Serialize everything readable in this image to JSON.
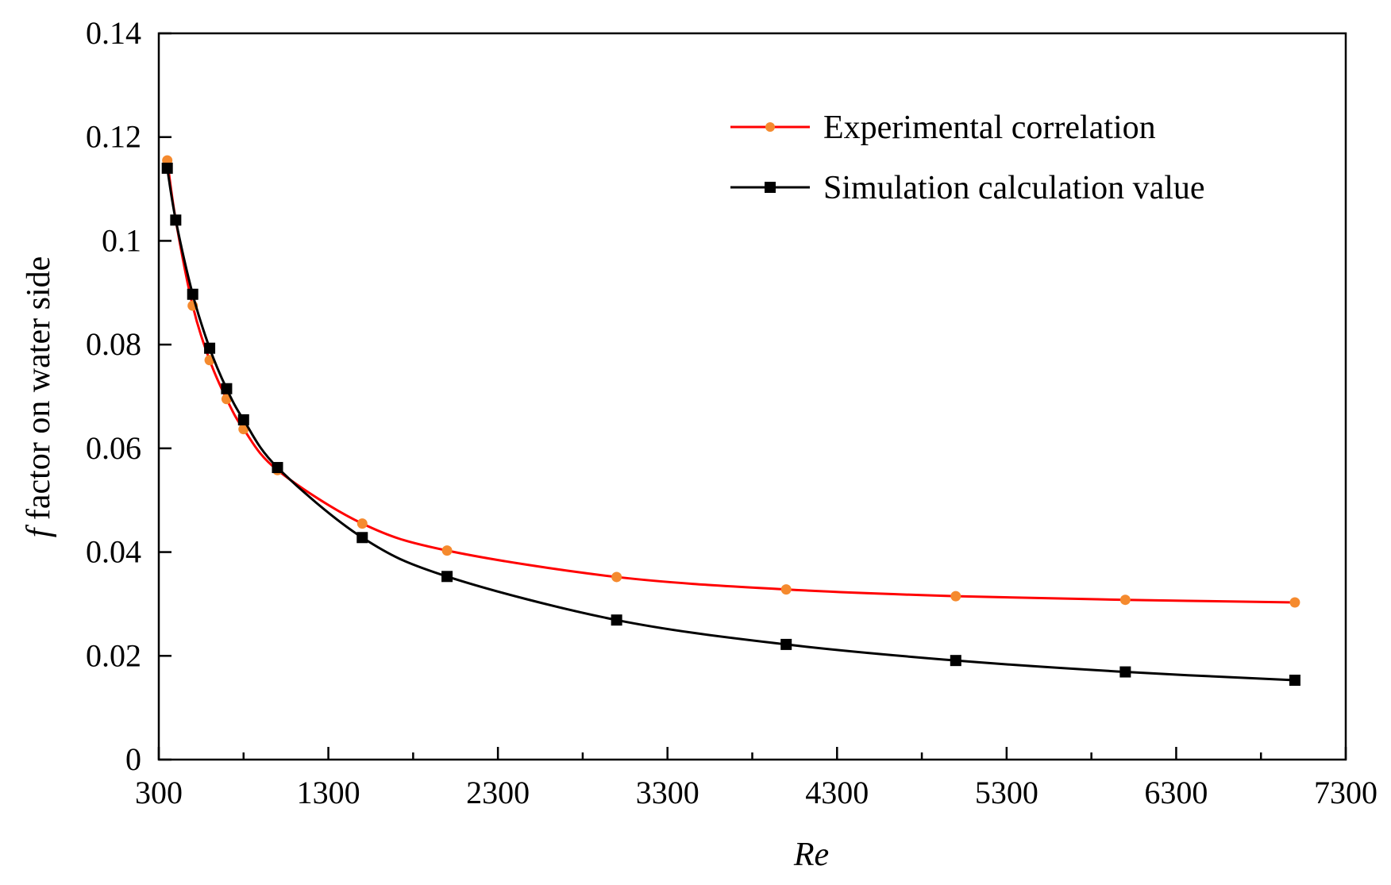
{
  "chart_data": {
    "type": "line",
    "title": "",
    "xlabel": "Re",
    "ylabel_prefix": "f",
    "ylabel": "factor on water side",
    "xlim": [
      300,
      7300
    ],
    "ylim": [
      0,
      0.14
    ],
    "xticks": [
      300,
      1300,
      2300,
      3300,
      4300,
      5300,
      6300,
      7300
    ],
    "xtick_labels": [
      "300",
      "1300",
      "2300",
      "3300",
      "4300",
      "5300",
      "6300",
      "7300"
    ],
    "xminor_step": 500,
    "yticks": [
      0,
      0.02,
      0.04,
      0.06,
      0.08,
      0.1,
      0.12,
      0.14
    ],
    "ytick_labels": [
      "0",
      "0.02",
      "0.04",
      "0.06",
      "0.08",
      "0.1",
      "0.12",
      "0.14"
    ],
    "grid": false,
    "legend_position": "top-right",
    "series": [
      {
        "name": "Experimental correlation",
        "color": "#ff0000",
        "marker_color": "#f58a2e",
        "marker": "circle",
        "x": [
          350,
          400,
          500,
          600,
          700,
          800,
          1000,
          1500,
          2000,
          3000,
          4000,
          5000,
          6000,
          7000
        ],
        "y": [
          0.1155,
          0.104,
          0.0875,
          0.077,
          0.0695,
          0.0637,
          0.0558,
          0.0455,
          0.0403,
          0.0352,
          0.0328,
          0.0315,
          0.0308,
          0.0303
        ]
      },
      {
        "name": "Simulation calculation value",
        "color": "#000000",
        "marker_color": "#000000",
        "marker": "square",
        "x": [
          350,
          400,
          500,
          600,
          700,
          800,
          1000,
          1500,
          2000,
          3000,
          4000,
          5000,
          6000,
          7000
        ],
        "y": [
          0.114,
          0.104,
          0.0897,
          0.0793,
          0.0715,
          0.0655,
          0.0563,
          0.0428,
          0.0353,
          0.0269,
          0.0222,
          0.0191,
          0.0169,
          0.0153
        ]
      }
    ]
  }
}
